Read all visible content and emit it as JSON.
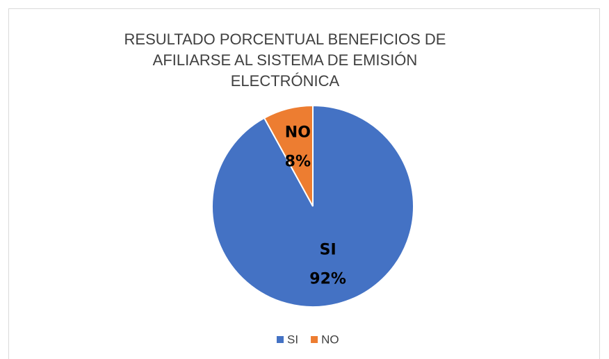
{
  "chart_data": {
    "type": "pie",
    "title": [
      "RESULTADO PORCENTUAL BENEFICIOS DE",
      "AFILIARSE AL SISTEMA DE EMISIÓN",
      "ELECTRÓNICA"
    ],
    "categories": [
      "SI",
      "NO"
    ],
    "values": [
      92,
      8
    ],
    "value_labels": [
      "92%",
      "8%"
    ],
    "colors": [
      "#4472c4",
      "#ed7d31"
    ],
    "legend": "bottom"
  }
}
